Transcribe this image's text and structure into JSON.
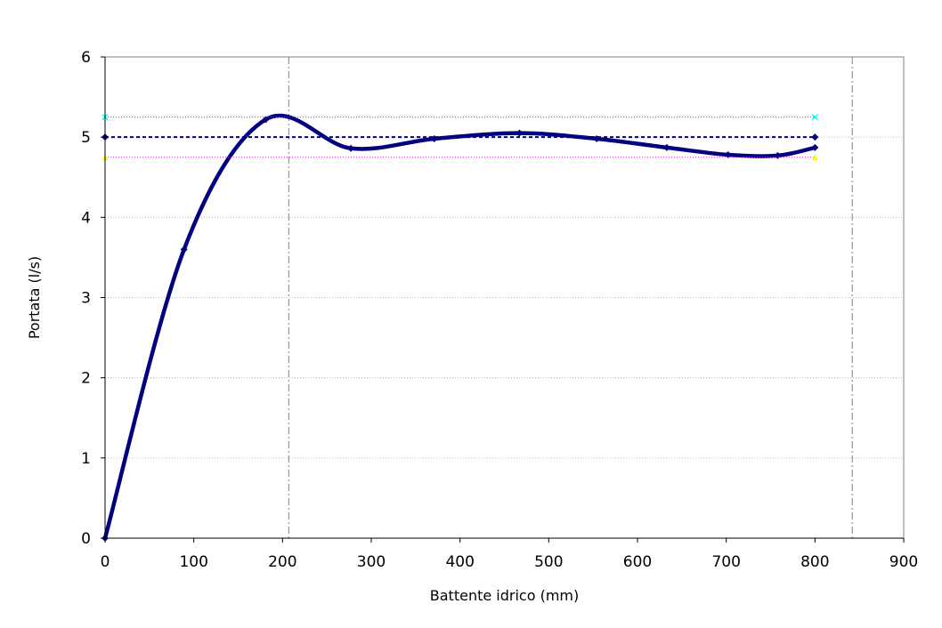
{
  "chart_data": {
    "type": "line",
    "title": "",
    "xlabel": "Battente idrico (mm)",
    "ylabel": "Portata (l/s)",
    "xlim": [
      0,
      900
    ],
    "ylim": [
      0,
      6
    ],
    "x_ticks": [
      0,
      100,
      200,
      300,
      400,
      500,
      600,
      700,
      800,
      900
    ],
    "y_ticks": [
      0,
      1,
      2,
      3,
      4,
      5,
      6
    ],
    "x_tick_labels": [
      "0",
      "100",
      "200",
      "300",
      "400",
      "500",
      "600",
      "700",
      "800",
      "900"
    ],
    "y_tick_labels": [
      "0",
      "1",
      "2",
      "3",
      "4",
      "5",
      "6"
    ],
    "grid": "horizontal dotted",
    "legend": "none",
    "series": [
      {
        "style": "smooth line with diamond markers",
        "color": "#000080",
        "points": [
          [
            0,
            0
          ],
          [
            89,
            3.6
          ],
          [
            181,
            5.22
          ],
          [
            277,
            4.86
          ],
          [
            371,
            4.98
          ],
          [
            467,
            5.05
          ],
          [
            554,
            4.98
          ],
          [
            633,
            4.87
          ],
          [
            702,
            4.78
          ],
          [
            758,
            4.77
          ],
          [
            800,
            4.87
          ]
        ]
      },
      {
        "style": "dashed line",
        "color": "#000080",
        "marker": "diamond",
        "points": [
          [
            0,
            5.0
          ],
          [
            800,
            5.0
          ]
        ]
      },
      {
        "style": "dotted line",
        "color": "#FF00FF",
        "marker": "x",
        "marker_color": "#00FFFF",
        "points": [
          [
            0,
            5.25
          ],
          [
            800,
            5.25
          ]
        ]
      },
      {
        "style": "dotted line",
        "color": "#FF00FF",
        "marker": "triangle",
        "marker_color": "#FFFF00",
        "points": [
          [
            0,
            4.75
          ],
          [
            800,
            4.75
          ]
        ]
      }
    ],
    "vertical_reference_lines": [
      {
        "x": 207,
        "style": "dash-dot",
        "color": "#808080"
      },
      {
        "x": 842,
        "style": "dash-dot",
        "color": "#808080"
      }
    ]
  }
}
